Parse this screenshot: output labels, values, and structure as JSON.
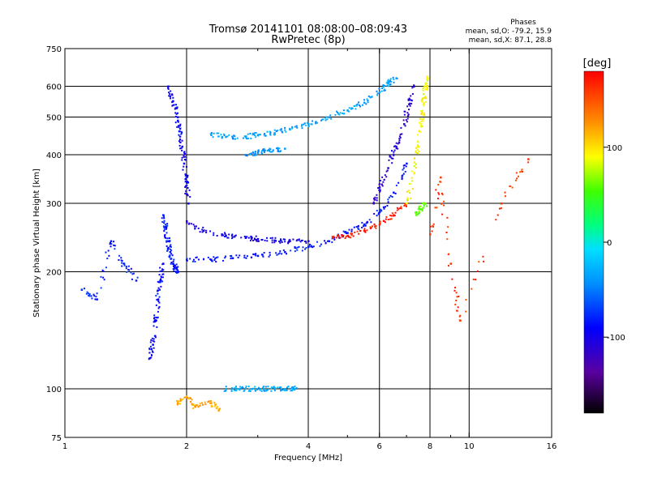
{
  "chart_data": {
    "type": "scatter",
    "title": "Tromsø 20141101 08:08:00–08:09:43",
    "subtitle": "RwPretec (8p)",
    "xlabel": "Frequency [MHz]",
    "ylabel": "Stationary phase Virtual Height [km]",
    "x_scale": "log",
    "y_scale": "log",
    "xlim": [
      1,
      16
    ],
    "ylim": [
      75,
      750
    ],
    "x_ticks": [
      "1",
      "2",
      "4",
      "6",
      "8",
      "10",
      "16"
    ],
    "x_tick_values": [
      1,
      2,
      4,
      6,
      8,
      10,
      16
    ],
    "x_minor_ticks": [
      3,
      5,
      7,
      9
    ],
    "y_ticks": [
      "75",
      "100",
      "200",
      "300",
      "400",
      "500",
      "600",
      "750"
    ],
    "y_tick_values": [
      75,
      100,
      200,
      300,
      400,
      500,
      600,
      750
    ],
    "grid": true,
    "grid_x": [
      2,
      4,
      6,
      8,
      10
    ],
    "grid_y": [
      100,
      200,
      300,
      400,
      500,
      600
    ],
    "colorbar": {
      "label": "[deg]",
      "ticks": [
        "100",
        "0",
        "-100"
      ],
      "tick_values": [
        100,
        0,
        -100
      ],
      "range": [
        -180,
        180
      ]
    },
    "phase_header": "Phases",
    "phase_stats": [
      "mean, sd,O: -79.2, 15.9",
      "mean, sd,X: 87.1, 28.8"
    ],
    "series": [
      {
        "color_value": -95,
        "x": [
          1.8,
          1.85,
          1.9,
          1.92,
          1.95,
          1.97,
          2.0,
          2.02
        ],
        "y": [
          600,
          550,
          500,
          460,
          420,
          380,
          340,
          300
        ]
      },
      {
        "color_value": -85,
        "x": [
          1.75,
          1.78,
          1.8,
          1.82,
          1.85,
          1.88,
          1.9
        ],
        "y": [
          280,
          260,
          240,
          225,
          210,
          205,
          200
        ]
      },
      {
        "color_value": -90,
        "x": [
          1.62,
          1.65,
          1.68,
          1.7,
          1.72,
          1.75
        ],
        "y": [
          120,
          130,
          150,
          170,
          190,
          210
        ]
      },
      {
        "color_value": -35,
        "x": [
          2.3,
          2.5,
          2.8,
          3.0,
          3.3,
          3.6,
          4.0,
          4.5,
          5.0,
          5.5,
          6.0,
          6.3,
          6.6
        ],
        "y": [
          450,
          445,
          445,
          450,
          455,
          465,
          480,
          500,
          520,
          545,
          580,
          610,
          630
        ]
      },
      {
        "color_value": -40,
        "x": [
          2.8,
          3.0,
          3.2,
          3.5
        ],
        "y": [
          400,
          405,
          410,
          415
        ]
      },
      {
        "color_value": -85,
        "x": [
          2.0,
          2.3,
          2.6,
          3.0,
          3.5,
          4.0,
          4.5,
          5.0,
          5.5,
          6.0,
          6.5,
          7.0
        ],
        "y": [
          215,
          215,
          217,
          220,
          225,
          232,
          240,
          252,
          265,
          285,
          320,
          380
        ]
      },
      {
        "color_value": -100,
        "x": [
          2.0,
          2.2,
          2.5,
          2.8,
          3.0,
          3.3,
          3.6,
          4.0
        ],
        "y": [
          270,
          255,
          248,
          245,
          243,
          241,
          240,
          240
        ]
      },
      {
        "color_value": -110,
        "x": [
          5.8,
          6.0,
          6.3,
          6.6,
          6.9,
          7.1,
          7.3
        ],
        "y": [
          300,
          330,
          370,
          420,
          480,
          540,
          600
        ]
      },
      {
        "color_value": 170,
        "x": [
          4.6,
          5.0,
          5.5,
          6.0,
          6.5,
          7.0
        ],
        "y": [
          245,
          248,
          255,
          265,
          280,
          300
        ]
      },
      {
        "color_value": 90,
        "x": [
          7.0,
          7.3,
          7.5,
          7.6,
          7.7,
          7.8,
          7.9
        ],
        "y": [
          300,
          360,
          420,
          480,
          540,
          590,
          630
        ]
      },
      {
        "color_value": 60,
        "x": [
          7.4,
          7.6,
          7.8
        ],
        "y": [
          280,
          290,
          300
        ]
      },
      {
        "color_value": -30,
        "x": [
          2.5,
          2.7,
          2.9,
          3.1,
          3.3,
          3.5,
          3.7
        ],
        "y": [
          100,
          100,
          100,
          100,
          100,
          100,
          100
        ]
      },
      {
        "color_value": 120,
        "x": [
          1.9,
          2.0,
          2.1,
          2.3,
          2.4
        ],
        "y": [
          92,
          95,
          90,
          92,
          88
        ]
      },
      {
        "color_value": -80,
        "x": [
          1.1,
          1.2,
          1.3,
          1.4,
          1.5
        ],
        "y": [
          180,
          170,
          240,
          210,
          190
        ]
      },
      {
        "color_value": 160,
        "x": [
          8.0,
          8.5,
          9.0,
          9.5,
          12.0,
          14.0
        ],
        "y": [
          250,
          350,
          210,
          150,
          300,
          390
        ]
      }
    ]
  }
}
